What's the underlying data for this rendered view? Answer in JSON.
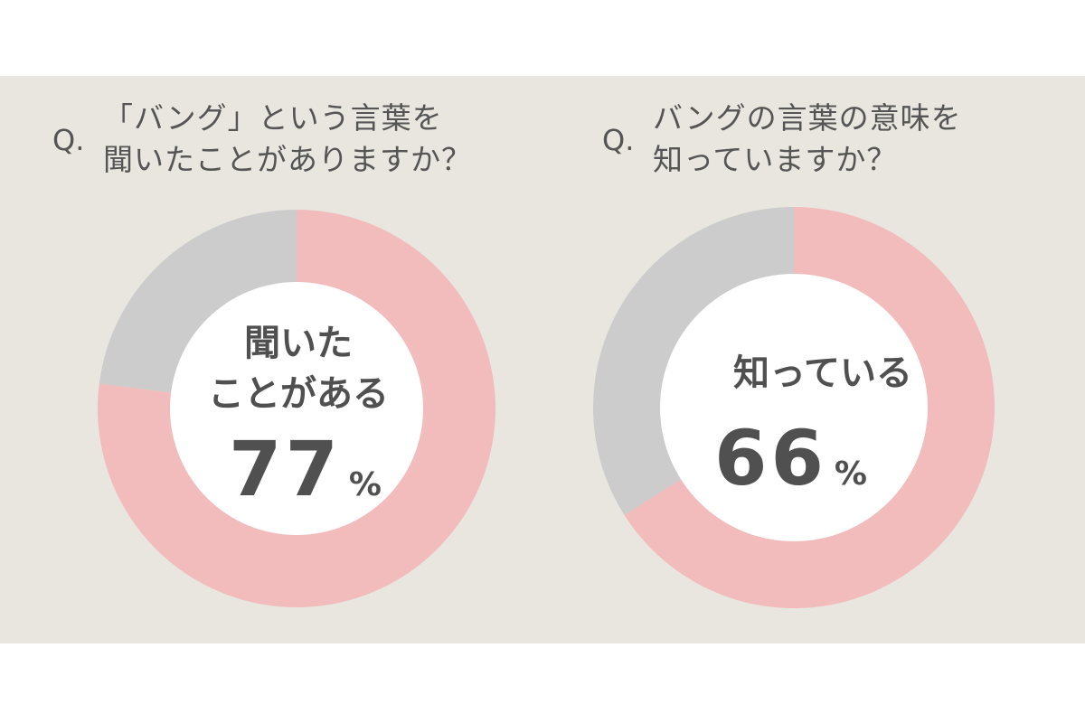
{
  "colors": {
    "panel_background": "#e9e6df",
    "yes_slice": "#f2bcbc",
    "no_slice": "#cccccc",
    "hole": "#ffffff",
    "text": "#505050"
  },
  "chart_data": [
    {
      "type": "pie",
      "question_prefix": "Q.",
      "question_lines": [
        "「バング」という言葉を",
        "聞いたことがありますか？"
      ],
      "center_label_lines": [
        "聞いた",
        "ことがある"
      ],
      "center_value": "77",
      "center_unit": "%",
      "slices": [
        {
          "label": "聞いたことがある",
          "value": 77,
          "color": "#f2bcbc"
        },
        {
          "label": "",
          "value": 23,
          "color": "#cccccc"
        }
      ]
    },
    {
      "type": "pie",
      "question_prefix": "Q.",
      "question_lines": [
        "バングの言葉の意味を",
        "知っていますか？"
      ],
      "center_label_lines": [
        "知っている"
      ],
      "center_value": "66",
      "center_unit": "%",
      "slices": [
        {
          "label": "知っている",
          "value": 66,
          "color": "#f2bcbc"
        },
        {
          "label": "",
          "value": 34,
          "color": "#cccccc"
        }
      ]
    }
  ]
}
